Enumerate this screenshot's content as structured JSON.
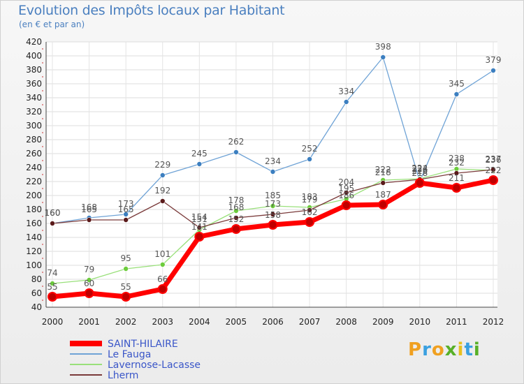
{
  "chart_data": {
    "type": "line",
    "title": "Evolution des Impôts locaux par Habitant",
    "subtitle": "(en € et par an)",
    "xlabel": "",
    "ylabel": "",
    "categories": [
      "2000",
      "2001",
      "2002",
      "2003",
      "2004",
      "2005",
      "2006",
      "2007",
      "2008",
      "2009",
      "2010",
      "2011",
      "2012"
    ],
    "ylim": [
      40,
      420
    ],
    "yticks": [
      40,
      60,
      80,
      100,
      120,
      140,
      160,
      180,
      200,
      220,
      240,
      260,
      280,
      300,
      320,
      340,
      360,
      380,
      400,
      420
    ],
    "grid": true,
    "legend_position": "bottom-left",
    "series": [
      {
        "name": "SAINT-HILAIRE",
        "color": "#ff0000",
        "marker_color": "#c00000",
        "values": [
          55,
          60,
          55,
          66,
          141,
          152,
          158,
          162,
          186,
          187,
          218,
          211,
          222
        ],
        "labels": [
          "55",
          "60",
          "55",
          "66",
          "141",
          "152",
          "158",
          "162",
          "186",
          "187",
          "218",
          "211",
          "222"
        ]
      },
      {
        "name": "Le Fauga",
        "color": "#6fa3d6",
        "marker_color": "#3c7fc0",
        "values": [
          160,
          168,
          173,
          229,
          245,
          262,
          234,
          252,
          334,
          398,
          220,
          345,
          379
        ],
        "labels": [
          "160",
          "168",
          "173",
          "229",
          "245",
          "262",
          "234",
          "252",
          "334",
          "398",
          "220",
          "345",
          "379"
        ]
      },
      {
        "name": "Lavernose-Lacasse",
        "color": "#99e07a",
        "marker_color": "#6ccc3c",
        "values": [
          74,
          79,
          95,
          101,
          151,
          178,
          185,
          183,
          195,
          222,
          224,
          238,
          236
        ],
        "labels": [
          "74",
          "79",
          "95",
          "101",
          "151",
          "178",
          "185",
          "183",
          "195",
          "222",
          "224",
          "238",
          "236"
        ]
      },
      {
        "name": "Lherm",
        "color": "#7a3a3a",
        "marker_color": "#5a1a1a",
        "values": [
          160,
          165,
          165,
          192,
          154,
          168,
          173,
          179,
          204,
          218,
          223,
          232,
          237
        ],
        "labels": [
          "160",
          "165",
          "165",
          "192",
          "154",
          "168",
          "173",
          "179",
          "204",
          "218",
          "223",
          "232",
          "237"
        ]
      }
    ]
  },
  "logo": {
    "text": "Proxiti"
  }
}
